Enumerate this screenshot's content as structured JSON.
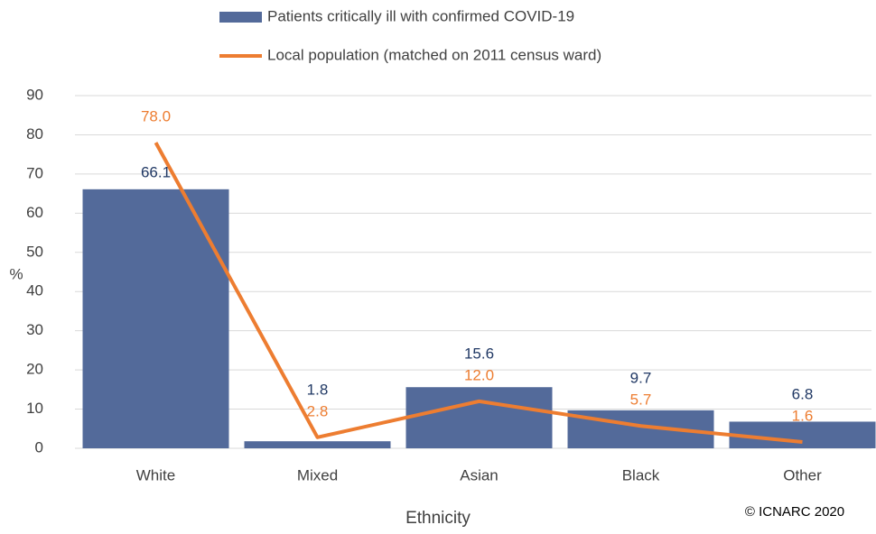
{
  "chart_data": {
    "type": "bar-line",
    "categories": [
      "White",
      "Mixed",
      "Asian",
      "Black",
      "Other"
    ],
    "series": [
      {
        "name": "Patients critically ill with confirmed COVID-19",
        "color": "#536a9a",
        "label_color": "#203864",
        "values": [
          66.1,
          1.8,
          15.6,
          9.7,
          6.8
        ]
      },
      {
        "name": "Local population (matched on 2011 census ward)",
        "color": "#ed7d31",
        "label_color": "#ed7d31",
        "values": [
          78,
          2.8,
          12,
          5.7,
          1.6
        ],
        "value_labels": [
          "78.0",
          "2.8",
          "12.0",
          "5.7",
          "1.6"
        ]
      }
    ],
    "ylabel": "%",
    "xlabel": "Ethnicity",
    "annotation": "© ICNARC 2020",
    "ylim": [
      0,
      90
    ],
    "yticks": [
      0,
      10,
      20,
      30,
      40,
      50,
      60,
      70,
      80,
      90
    ],
    "grid": true
  }
}
